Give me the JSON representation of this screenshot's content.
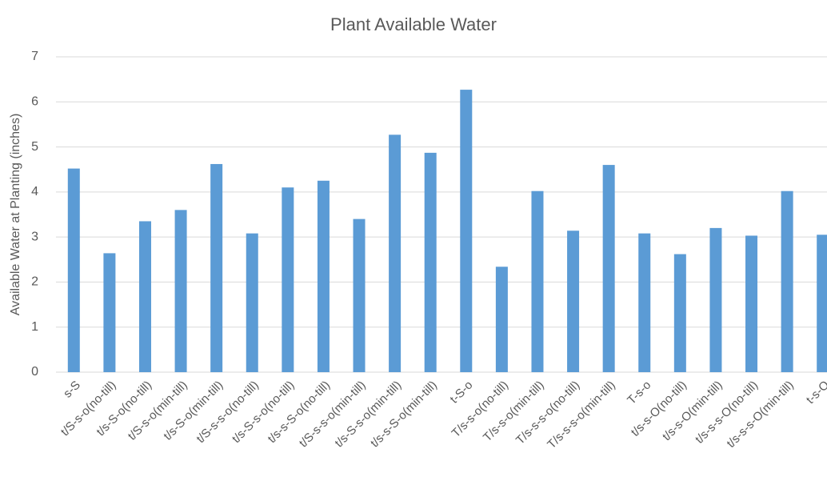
{
  "chart_data": {
    "type": "bar",
    "title": "Plant Available Water",
    "y_label": "Available Water at Planting (inches)",
    "categories": [
      "s-S",
      "t/S-s-o(no-till)",
      "t/s-S-o(no-till)",
      "t/S-s-o(min-till)",
      "t/s-S-o(min-till)",
      "t/S-s-s-o(no-till)",
      "t/s-S-s-o(no-till)",
      "t/s-s-S-o(no-till)",
      "t/S-s-s-o(min-till)",
      "t/s-S-s-o(min-till)",
      "t/s-s-S-o(min-till)",
      "t-S-o",
      "T/s-s-o(no-till)",
      "T/s-s-o(min-till)",
      "T/s-s-s-o(no-till)",
      "T/s-s-s-o(min-till)",
      "T-s-o",
      "t/s-s-O(no-till)",
      "t/s-s-O(min-till)",
      "t/s-s-s-O(no-till)",
      "t/s-s-s-O(min-till)",
      "t-s-O"
    ],
    "values": [
      4.52,
      2.64,
      3.35,
      3.6,
      4.62,
      3.08,
      4.1,
      4.25,
      3.4,
      5.27,
      4.87,
      6.27,
      2.34,
      4.02,
      3.14,
      4.6,
      3.08,
      2.62,
      3.2,
      3.03,
      4.02,
      3.05
    ],
    "color": "#5b9bd5",
    "ylim": [
      0,
      7
    ],
    "yticks": [
      0,
      1,
      2,
      3,
      4,
      5,
      6,
      7
    ],
    "grid": true
  }
}
